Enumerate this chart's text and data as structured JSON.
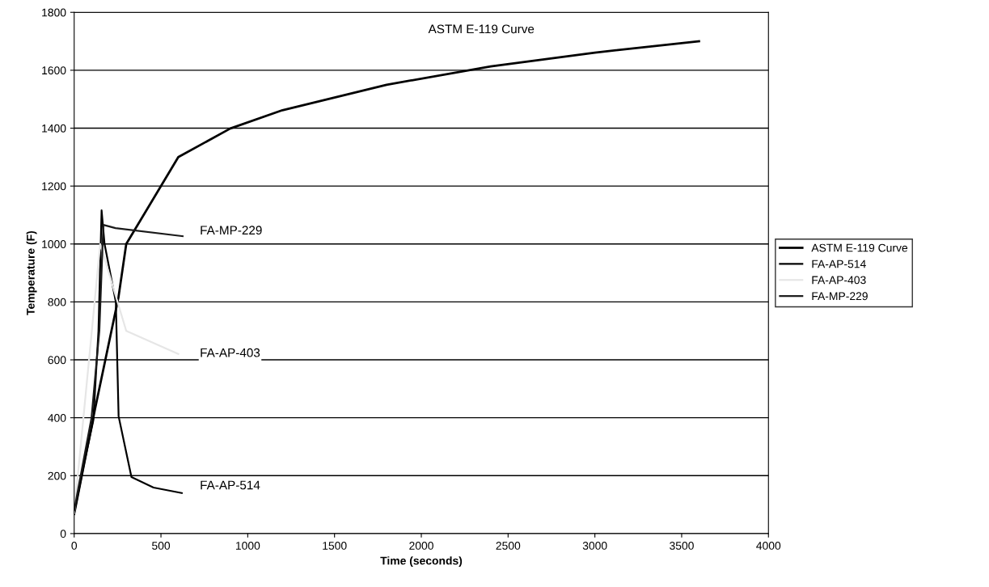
{
  "chart_data": {
    "type": "line",
    "xlabel": "Time (seconds)",
    "ylabel": "Temperature (F)",
    "xlim": [
      0,
      4000
    ],
    "xticks": [
      0,
      500,
      1000,
      1500,
      2000,
      2500,
      3000,
      3500,
      4000
    ],
    "ylim": [
      0,
      1800
    ],
    "yticks": [
      0,
      200,
      400,
      600,
      800,
      1000,
      1200,
      1400,
      1600,
      1800
    ],
    "grid": "y",
    "legend": "right",
    "marker": "none",
    "line_style": "solid",
    "series": [
      {
        "name": "ASTM E-119 Curve",
        "color": "#000000",
        "x": [
          0,
          120,
          255,
          300,
          600,
          900,
          1200,
          1800,
          2400,
          3000,
          3600
        ],
        "values": [
          68,
          430,
          815,
          1000,
          1300,
          1399,
          1462,
          1550,
          1613,
          1661,
          1700
        ]
      },
      {
        "name": "FA-AP-514",
        "color": "#000000",
        "x": [
          0,
          60,
          110,
          140,
          158,
          175,
          240,
          256,
          330,
          457,
          620
        ],
        "values": [
          70,
          250,
          390,
          700,
          1116,
          1000,
          800,
          405,
          195,
          159,
          140
        ]
      },
      {
        "name": "FA-AP-403",
        "color": "#e6e6e6",
        "x": [
          0,
          150,
          300,
          600
        ],
        "values": [
          70,
          1000,
          700,
          620
        ]
      },
      {
        "name": "FA-MP-229",
        "color": "#1a1a1a",
        "x": [
          0,
          100,
          145,
          168,
          238,
          625
        ],
        "values": [
          80,
          400,
          700,
          1066,
          1055,
          1027
        ]
      }
    ],
    "annotations": [
      "ASTM E-119 Curve",
      "FA-MP-229",
      "FA-AP-403",
      "FA-AP-514"
    ]
  }
}
